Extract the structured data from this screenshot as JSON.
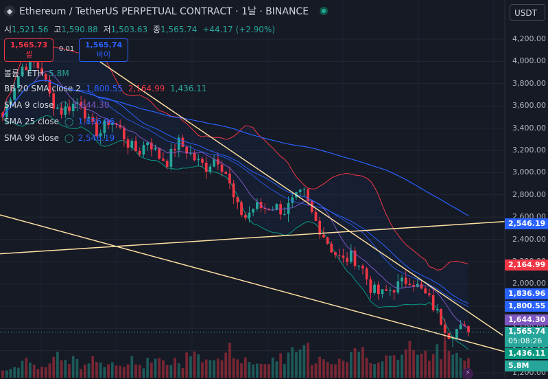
{
  "header": {
    "logo_icon": "ethereum-logo",
    "title": "Ethereum / TetherUS PERPETUAL CONTRACT · 1날 · BINANCE",
    "currency": "USDT"
  },
  "ohlc": {
    "o_label": "시",
    "o": "1,521.56",
    "h_label": "고",
    "h": "1,590.88",
    "l_label": "저",
    "l": "1,503.63",
    "c_label": "종",
    "c": "1,565.74",
    "change": "+44.17 (+2.90%)"
  },
  "trade": {
    "sell_price": "1,565.73",
    "sell_label": "셀",
    "spread": "0.01",
    "buy_price": "1,565.74",
    "buy_label": "바이"
  },
  "indicators": {
    "volume": {
      "label": "볼륨 · ETH",
      "value": "5.8M"
    },
    "bb": {
      "label": "BB 20 SMA close 2",
      "basis": "1,800.55",
      "upper": "2,164.99",
      "lower": "1,436.11"
    },
    "sma9": {
      "label": "SMA 9 close",
      "value": "1,644.30"
    },
    "sma25": {
      "label": "SMA 25 close",
      "value": "1,836.96"
    },
    "sma99": {
      "label": "SMA 99 close",
      "value": "2,546.19"
    }
  },
  "price_tags": {
    "sma99": "2,546.19",
    "bb_upper": "2,164.99",
    "sma25": "1,836.96",
    "bb_basis": "1,800.55",
    "sma9": "1,644.30",
    "last": "1,565.74",
    "countdown": "05:08:26",
    "bb_lower": "1,436.11",
    "volume": "5.8M"
  },
  "colors": {
    "up": "#26a69a",
    "down": "#f23645",
    "bb_band": "#f23645",
    "bb_lower": "#089981",
    "sma9": "#7e57c2",
    "sma25": "#2962ff",
    "sma99": "#2962ff",
    "trendline": "#ffe0a3"
  },
  "chart_data": {
    "type": "candlestick",
    "y_ticks": [
      "4,200.00",
      "4,000.00",
      "3,800.00",
      "3,600.00",
      "3,400.00",
      "3,200.00",
      "3,000.00",
      "2,800.00",
      "2,600.00",
      "2,400.00",
      "2,200.00",
      "2,000.00",
      "1,800.00",
      "1,600.00",
      "1,400.00",
      "1,200.00"
    ],
    "ylim": [
      1190,
      4330
    ],
    "grid": true,
    "close_path": [
      3500,
      3750,
      3950,
      4000,
      3920,
      3650,
      3550,
      3600,
      3650,
      3420,
      3350,
      3480,
      3400,
      3250,
      3180,
      3300,
      3150,
      3100,
      3280,
      3200,
      3100,
      3050,
      3150,
      3000,
      2700,
      2600,
      2700,
      2680,
      2700,
      2650,
      2750,
      2820,
      2600,
      2450,
      2300,
      2200,
      2250,
      2150,
      1950,
      1900,
      1950,
      2000,
      2050,
      1950,
      1850,
      1700,
      1550,
      1600,
      1565.74
    ],
    "volume_path": [
      0.3,
      0.4,
      0.5,
      0.35,
      0.45,
      0.6,
      0.4,
      0.5,
      0.35,
      0.5,
      0.4,
      0.45,
      0.3,
      0.5,
      0.4,
      0.6,
      0.5,
      0.45,
      0.35,
      0.7,
      0.6,
      0.5,
      0.55,
      0.8,
      0.6,
      0.45,
      0.5,
      0.4,
      0.55,
      0.6,
      0.7,
      0.9,
      0.5,
      0.6,
      0.45,
      0.55,
      0.7,
      0.8,
      0.6,
      0.5,
      0.55,
      0.6,
      0.9,
      0.7,
      0.6,
      0.8,
      1.0,
      0.7,
      0.5
    ]
  }
}
